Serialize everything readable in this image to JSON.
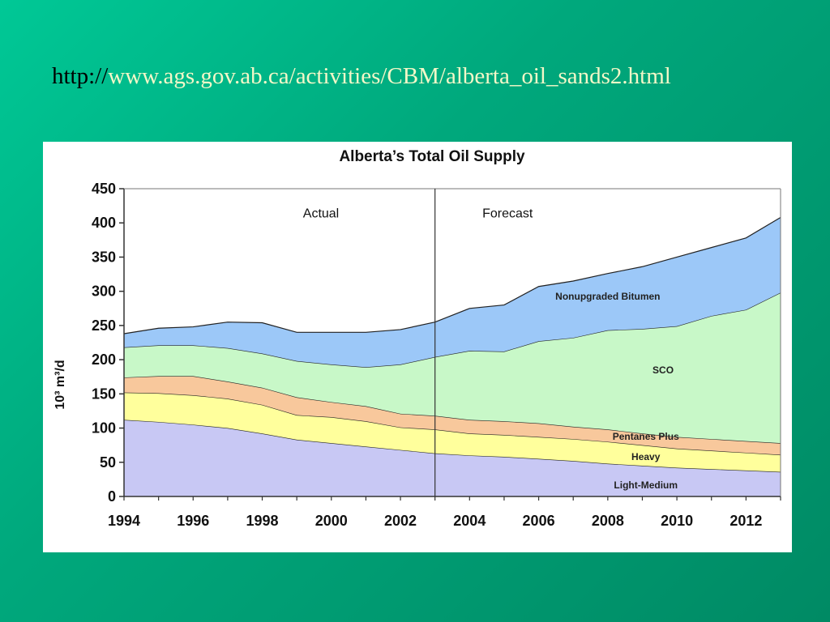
{
  "header": {
    "url_protocol": "http://",
    "url_rest": "www.ags.gov.ab.ca/activities/CBM/alberta_oil_sands2.html"
  },
  "chart_data": {
    "type": "area",
    "stacked": true,
    "title": "Alberta’s Total Oil Supply",
    "ylabel": "10³ m³/d",
    "ylim": [
      0,
      450
    ],
    "xlim": [
      1994,
      2013
    ],
    "yticks": [
      0,
      50,
      100,
      150,
      200,
      250,
      300,
      350,
      400,
      450
    ],
    "xticks": [
      1994,
      1996,
      1998,
      2000,
      2002,
      2004,
      2006,
      2008,
      2010,
      2012
    ],
    "grid": false,
    "divider_year": 2003,
    "annotations": [
      {
        "text": "Actual",
        "x": 1999.7,
        "y": 408
      },
      {
        "text": "Forecast",
        "x": 2005.1,
        "y": 408
      }
    ],
    "x": [
      1994,
      1995,
      1996,
      1997,
      1998,
      1999,
      2000,
      2001,
      2002,
      2003,
      2004,
      2005,
      2006,
      2007,
      2008,
      2009,
      2010,
      2011,
      2012,
      2013
    ],
    "series": [
      {
        "name": "Light-Medium",
        "color": "#c8c8f4",
        "label_x": 2009.1,
        "label_y": 12,
        "values": [
          112,
          109,
          105,
          100,
          92,
          83,
          78,
          73,
          68,
          63,
          60,
          58,
          55,
          52,
          48,
          45,
          42,
          40,
          38,
          36
        ]
      },
      {
        "name": "Heavy",
        "color": "#ffff9c",
        "label_x": 2009.1,
        "label_y": 53,
        "values": [
          40,
          42,
          43,
          43,
          42,
          36,
          38,
          37,
          33,
          35,
          32,
          32,
          32,
          32,
          32,
          30,
          28,
          27,
          26,
          25
        ]
      },
      {
        "name": "Pentanes Plus",
        "color": "#f8c89c",
        "label_x": 2009.1,
        "label_y": 83,
        "values": [
          22,
          25,
          28,
          25,
          25,
          26,
          22,
          22,
          20,
          20,
          20,
          20,
          20,
          18,
          18,
          17,
          17,
          17,
          17,
          17
        ]
      },
      {
        "name": "SCO",
        "color": "#c8f8c8",
        "label_x": 2009.6,
        "label_y": 180,
        "values": [
          44,
          45,
          45,
          49,
          50,
          53,
          55,
          57,
          72,
          86,
          101,
          102,
          120,
          130,
          145,
          153,
          162,
          180,
          192,
          220
        ]
      },
      {
        "name": "Nonupgraded Bitumen",
        "color": "#9cc8f8",
        "label_x": 2008.0,
        "label_y": 288,
        "values": [
          20,
          25,
          27,
          38,
          45,
          42,
          47,
          51,
          51,
          51,
          62,
          68,
          80,
          83,
          83,
          91,
          101,
          100,
          105,
          110
        ]
      }
    ]
  }
}
